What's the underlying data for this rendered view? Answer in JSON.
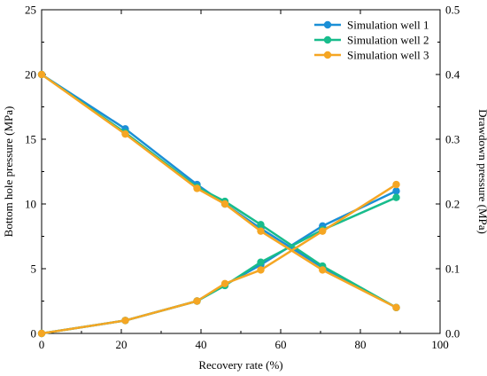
{
  "chart_data": {
    "type": "line",
    "title": "",
    "xlabel": "Recovery rate (%)",
    "ylabel": "Bottom hole pressure (MPa)",
    "y2label": "Drawdown pressure (MPa)",
    "xlim": [
      0,
      100
    ],
    "ylim": [
      0,
      25
    ],
    "y2lim": [
      0,
      0.5
    ],
    "x_ticks": [
      "0",
      "20",
      "40",
      "60",
      "80",
      "100"
    ],
    "y_ticks": [
      "0",
      "5",
      "10",
      "15",
      "20",
      "25"
    ],
    "y2_ticks": [
      "0.0",
      "0.1",
      "0.2",
      "0.3",
      "0.4",
      "0.5"
    ],
    "grid": false,
    "legend_position": "top-right",
    "series": [
      {
        "name": "Simulation well 1",
        "color": "#1b8fd6",
        "bhp": {
          "x": [
            0,
            21,
            39,
            46,
            55,
            70.5,
            89
          ],
          "y": [
            20,
            15.8,
            11.5,
            10,
            8.1,
            5.1,
            2
          ]
        },
        "drawdown": {
          "x": [
            0,
            21,
            39,
            46,
            55,
            70.5,
            89
          ],
          "y": [
            0,
            0.02,
            0.05,
            0.075,
            0.106,
            0.166,
            0.22
          ]
        }
      },
      {
        "name": "Simulation well 2",
        "color": "#18bc8c",
        "bhp": {
          "x": [
            0,
            21,
            39,
            46,
            55,
            70.5,
            89
          ],
          "y": [
            20,
            15.5,
            11.3,
            10.2,
            8.4,
            5.2,
            2
          ]
        },
        "drawdown": {
          "x": [
            0,
            21,
            39,
            46,
            55,
            70.5,
            89
          ],
          "y": [
            0,
            0.02,
            0.05,
            0.074,
            0.11,
            0.16,
            0.21
          ]
        }
      },
      {
        "name": "Simulation well 3",
        "color": "#f5a623",
        "bhp": {
          "x": [
            0,
            21,
            39,
            46,
            55,
            70.5,
            89
          ],
          "y": [
            20,
            15.4,
            11.2,
            10,
            7.9,
            4.9,
            2
          ]
        },
        "drawdown": {
          "x": [
            0,
            21,
            39,
            46,
            55,
            70.5,
            89
          ],
          "y": [
            0,
            0.02,
            0.05,
            0.077,
            0.098,
            0.158,
            0.23
          ]
        }
      }
    ]
  }
}
